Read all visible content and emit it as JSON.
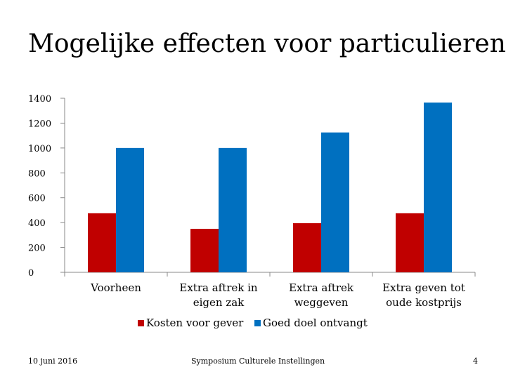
{
  "slide": {
    "title": "Mogelijke effecten voor particulieren",
    "footer_date": "10 juni 2016",
    "footer_center": "Symposium Culturele Instellingen",
    "page_number": "4"
  },
  "chart_data": {
    "type": "bar",
    "title": "",
    "xlabel": "",
    "ylabel": "",
    "ylim": [
      0,
      1400
    ],
    "yticks": [
      0,
      200,
      400,
      600,
      800,
      1000,
      1200,
      1400
    ],
    "grid": false,
    "legend": "bottom",
    "categories": [
      [
        "Voorheen"
      ],
      [
        "Extra aftrek in",
        "eigen zak"
      ],
      [
        "Extra aftrek",
        "weggeven"
      ],
      [
        "Extra geven tot",
        "oude kostprijs"
      ]
    ],
    "series": [
      {
        "name": "Kosten voor gever",
        "color": "#c00000",
        "values": [
          475,
          350,
          395,
          475
        ]
      },
      {
        "name": "Goed doel ontvangt",
        "color": "#0070c0",
        "values": [
          1000,
          1000,
          1125,
          1365
        ]
      }
    ]
  }
}
